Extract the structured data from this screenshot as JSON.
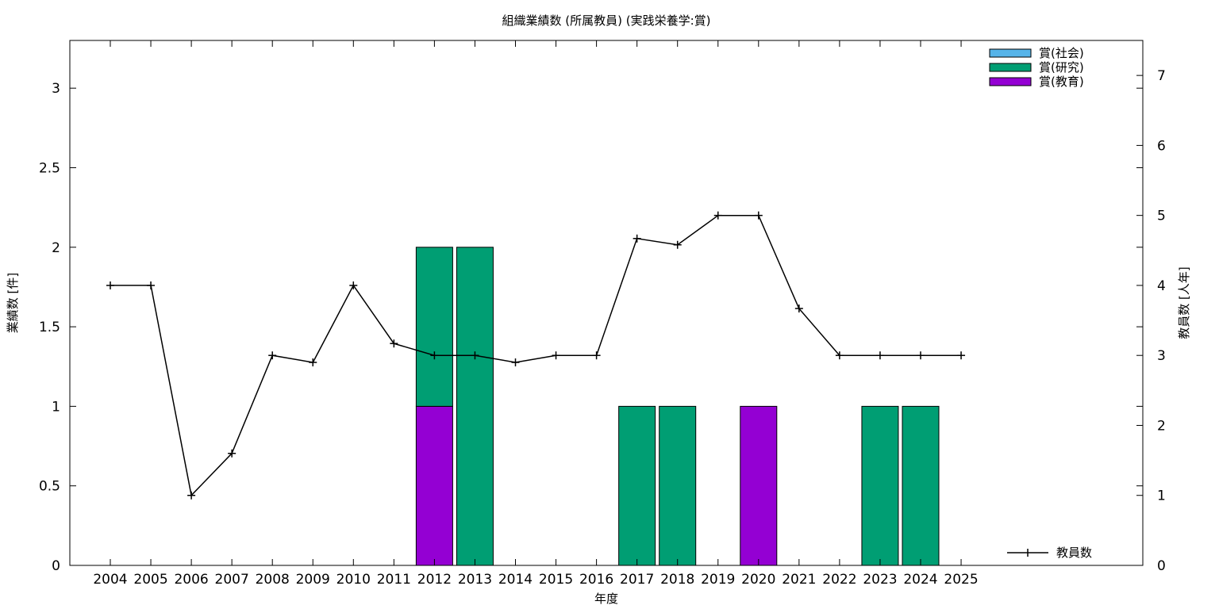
{
  "chart_data": {
    "type": "bar",
    "title": "組織業績数 (所属教員) (実践栄養学:賞)",
    "xlabel": "年度",
    "ylabel": "業績数 [件]",
    "y2label": "教員数 [人年]",
    "categories": [
      "2004",
      "2005",
      "2006",
      "2007",
      "2008",
      "2009",
      "2010",
      "2011",
      "2012",
      "2013",
      "2014",
      "2015",
      "2016",
      "2017",
      "2018",
      "2019",
      "2020",
      "2021",
      "2022",
      "2023",
      "2024",
      "2025"
    ],
    "stacked": true,
    "ylim": [
      0,
      3.3
    ],
    "y2lim": [
      0,
      7.5
    ],
    "yticks": [
      "0",
      "0.5",
      "1",
      "1.5",
      "2",
      "2.5",
      "3"
    ],
    "y2ticks": [
      "0",
      "1",
      "2",
      "3",
      "4",
      "5",
      "6",
      "7"
    ],
    "grid": false,
    "legend_position": "top-right",
    "series": [
      {
        "name": "賞(教育)",
        "color": "#9400d3",
        "values": [
          0,
          0,
          0,
          0,
          0,
          0,
          0,
          0,
          1,
          0,
          0,
          0,
          0,
          0,
          0,
          0,
          1,
          0,
          0,
          0,
          0,
          0
        ]
      },
      {
        "name": "賞(研究)",
        "color": "#009e73",
        "values": [
          0,
          0,
          0,
          0,
          0,
          0,
          0,
          0,
          1,
          2,
          0,
          0,
          0,
          1,
          1,
          0,
          0,
          0,
          0,
          1,
          1,
          0
        ]
      },
      {
        "name": "賞(社会)",
        "color": "#56b4e9",
        "values": [
          0,
          0,
          0,
          0,
          0,
          0,
          0,
          0,
          0,
          0,
          0,
          0,
          0,
          0,
          0,
          0,
          0,
          0,
          0,
          0,
          0,
          0
        ]
      }
    ],
    "legend_order": [
      "賞(社会)",
      "賞(研究)",
      "賞(教育)"
    ],
    "line_series": {
      "name": "教員数",
      "axis": "y2",
      "color": "#000000",
      "values": [
        4,
        4,
        1,
        1.6,
        3,
        2.9,
        4,
        3.17,
        3,
        3,
        2.9,
        3,
        3,
        4.67,
        4.58,
        5,
        5,
        3.67,
        3,
        3,
        3,
        3
      ]
    }
  }
}
